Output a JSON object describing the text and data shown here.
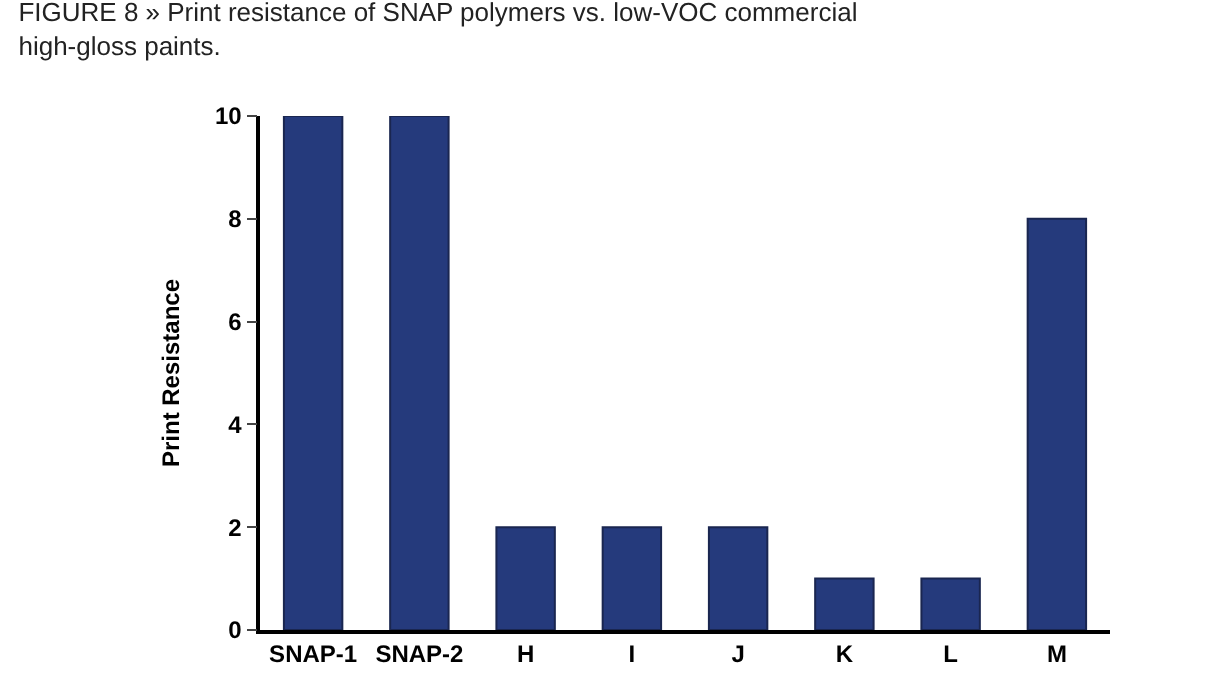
{
  "chart_data": {
    "type": "bar",
    "title": "FIGURE 8 » Print resistance of SNAP polymers vs. low-VOC commercial high-gloss paints.",
    "ylabel": "Print Resistance",
    "categories": [
      "SNAP-1",
      "SNAP-2",
      "H",
      "I",
      "J",
      "K",
      "L",
      "M"
    ],
    "values": [
      10,
      10,
      2,
      2,
      2,
      1,
      1,
      8
    ],
    "color": "#253a7c",
    "ylim": [
      0,
      10
    ],
    "yticks": [
      0,
      2,
      4,
      6,
      8,
      10
    ]
  }
}
